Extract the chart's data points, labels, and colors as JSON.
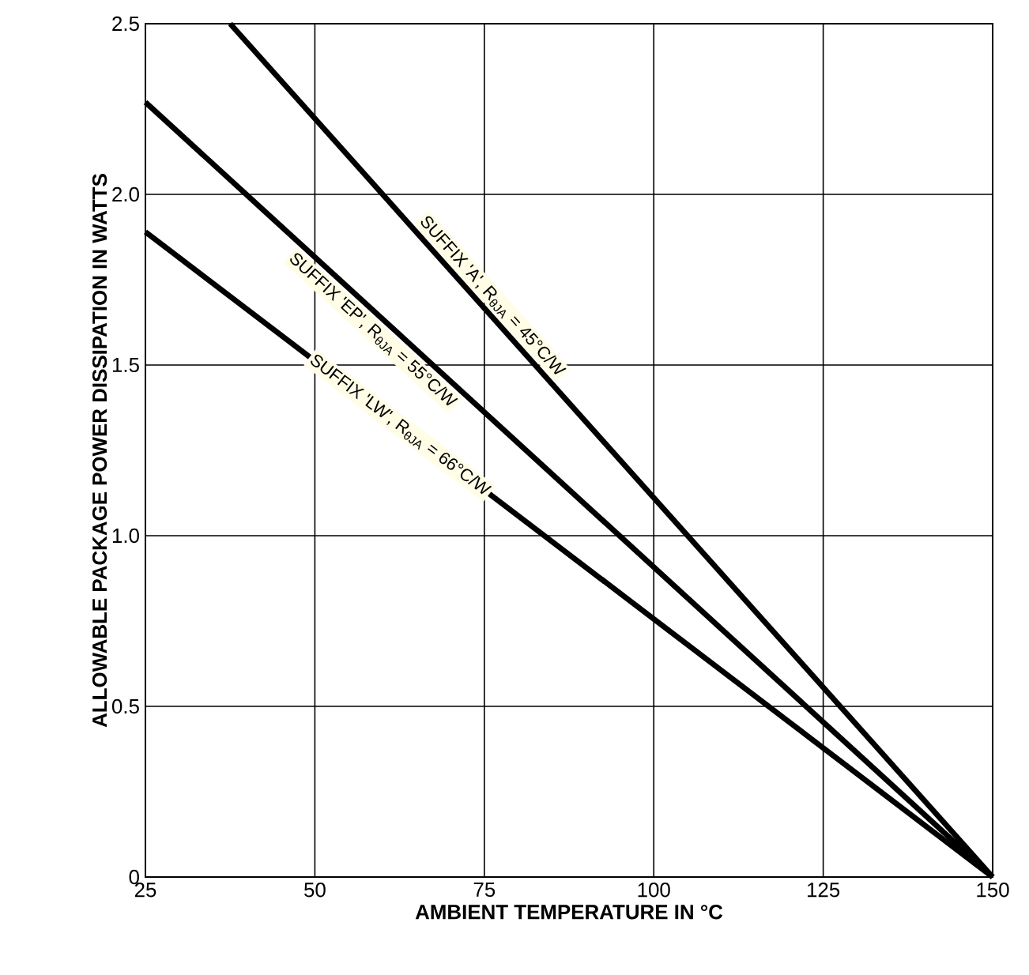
{
  "chart_data": {
    "type": "line",
    "xlabel": "AMBIENT TEMPERATURE IN °C",
    "ylabel": "ALLOWABLE PACKAGE POWER DISSIPATION IN WATTS",
    "series": [
      {
        "color": "#000000",
        "x": [
          37.5,
          150
        ],
        "values": [
          2.5,
          0
        ]
      },
      {
        "color": "#000000",
        "x": [
          25,
          150
        ],
        "values": [
          2.27,
          0
        ]
      },
      {
        "color": "#000000",
        "x": [
          25,
          150
        ],
        "values": [
          1.89,
          0
        ]
      }
    ],
    "annotations": [
      "SUFFIX 'A', R$_{θJA}$ = 45°C/W",
      "SUFFIX 'EP', R$_{θJA}$ = 55°C/W",
      "SUFFIX 'LW', R$_{θJA}$ = 66°C/W"
    ],
    "xlim": [
      25,
      150
    ],
    "ylim": [
      0,
      2.5
    ],
    "xticks": [
      25,
      50,
      75,
      100,
      125,
      150
    ],
    "yticks": [
      0,
      0.5,
      {
        "value": 1.0,
        "label": "1.0"
      },
      1.5,
      {
        "value": 2.0,
        "label": "2.0"
      },
      2.5
    ],
    "grid": true,
    "marker": "none",
    "line_style": "solid"
  }
}
